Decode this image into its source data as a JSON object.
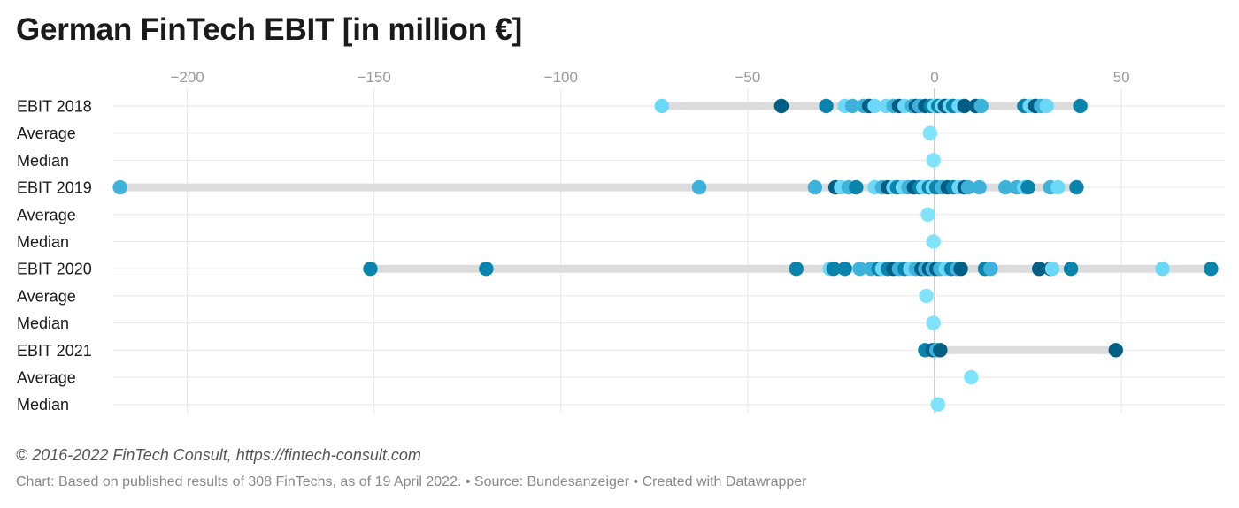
{
  "title": "German FinTech EBIT [in million €]",
  "footer": {
    "copyright": "© 2016-2022 FinTech Consult, https://fintech-consult.com",
    "note": "Chart: Based on published results of 308 FinTechs, as of 19 April 2022. • Source: Bundesanzeiger • Created with Datawrapper"
  },
  "colors": {
    "background": "#ffffff",
    "grid": "#e6e6e6",
    "zero_line": "#bdbdbd",
    "range_bar": "#dcdcdc",
    "palette": [
      "#015f86",
      "#0a84ad",
      "#3db3dc",
      "#6cd8f7"
    ],
    "summary_dot": "#7fe3fb"
  },
  "chart_data": {
    "type": "scatter",
    "title": "German FinTech EBIT [in million €]",
    "xlabel": "",
    "ylabel": "",
    "xlim": [
      -219,
      75
    ],
    "x_ticks": [
      -200,
      -150,
      -100,
      -50,
      0,
      50
    ],
    "x_tick_labels": [
      "−200",
      "−150",
      "−100",
      "−50",
      "0",
      "50"
    ],
    "grid": true,
    "rows": [
      {
        "label": "EBIT 2018",
        "kind": "dist",
        "values": [
          -73,
          -41,
          -29,
          -24,
          -22,
          -19,
          -17.5,
          -16,
          -13,
          -11,
          -9.5,
          -8,
          -6,
          -5,
          -4,
          -2.5,
          -1,
          0,
          1,
          2,
          2.8,
          4,
          5,
          6.5,
          8,
          11,
          12.5,
          24,
          25.5,
          27,
          28.5,
          30,
          39
        ]
      },
      {
        "label": "Average",
        "kind": "average",
        "values": [
          -1.2
        ]
      },
      {
        "label": "Median",
        "kind": "median",
        "values": [
          -0.3
        ]
      },
      {
        "label": "EBIT 2019",
        "kind": "dist",
        "values": [
          -218,
          -63,
          -32,
          -26.5,
          -25,
          -23,
          -21,
          -16,
          -14,
          -12.5,
          -11,
          -10,
          -8.5,
          -7,
          -5.5,
          -4,
          -3,
          -1.5,
          -0.5,
          0.5,
          2,
          3.5,
          5,
          6.5,
          8,
          9,
          12,
          19,
          22,
          24,
          25,
          31,
          33,
          38
        ]
      },
      {
        "label": "Average",
        "kind": "average",
        "values": [
          -1.8
        ]
      },
      {
        "label": "Median",
        "kind": "median",
        "values": [
          -0.3
        ]
      },
      {
        "label": "EBIT 2020",
        "kind": "dist",
        "values": [
          -151,
          -120,
          -37,
          -28,
          -27,
          -24,
          -20,
          -17,
          -15,
          -14,
          -12.5,
          -11,
          -9.5,
          -8,
          -6.5,
          -5,
          -3.5,
          -2.5,
          -1.5,
          -0.5,
          0.5,
          1.5,
          3,
          4.5,
          6,
          7,
          13.5,
          15,
          28,
          31,
          31.5,
          36.5,
          61,
          74
        ]
      },
      {
        "label": "Average",
        "kind": "average",
        "values": [
          -2.2
        ]
      },
      {
        "label": "Median",
        "kind": "median",
        "values": [
          -0.3
        ]
      },
      {
        "label": "EBIT 2021",
        "kind": "dist",
        "values": [
          -2.5,
          -0.5,
          0.5,
          1.5,
          48.5
        ]
      },
      {
        "label": "Average",
        "kind": "average",
        "values": [
          9.8
        ]
      },
      {
        "label": "Median",
        "kind": "median",
        "values": [
          0.9
        ]
      }
    ]
  }
}
